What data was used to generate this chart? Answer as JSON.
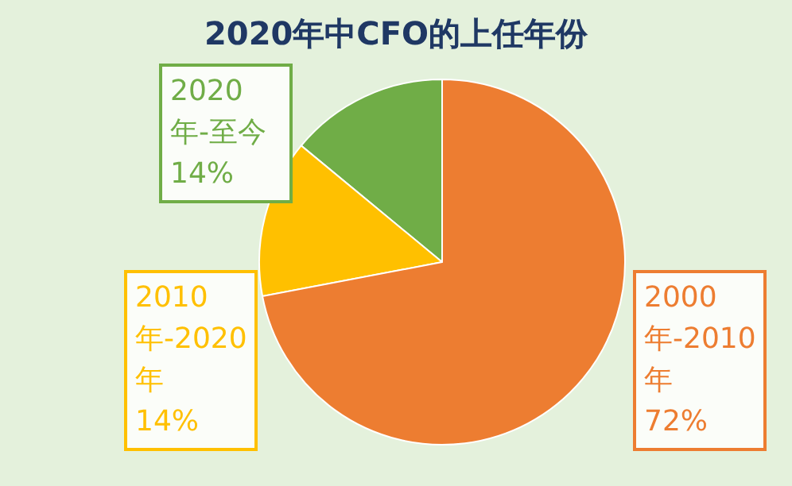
{
  "chart_data": {
    "type": "pie",
    "title": "2020年中CFO的上任年份",
    "categories": [
      "2020年-至今",
      "2010年-2020年",
      "2000年-2010年"
    ],
    "values": [
      14,
      14,
      72
    ],
    "value_labels": [
      "14%",
      "14%",
      "72%"
    ],
    "colors": [
      "#70ad47",
      "#ffc000",
      "#ed7d31"
    ]
  }
}
